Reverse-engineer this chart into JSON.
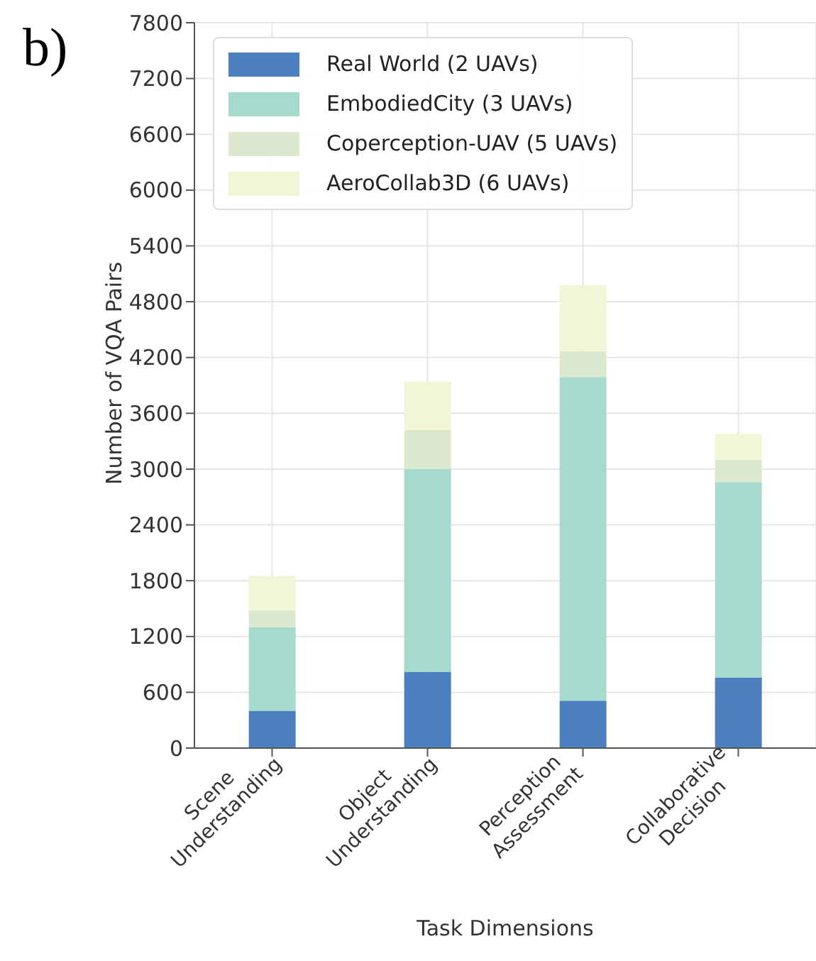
{
  "chart_data": {
    "type": "bar",
    "stacked": true,
    "categories": [
      "Scene Understanding",
      "Object Understanding",
      "Perception Assessment",
      "Collaborative Decision"
    ],
    "series": [
      {
        "name": "Real World (2 UAVs)",
        "color": "#4c7fbf",
        "values": [
          400,
          820,
          510,
          760
        ]
      },
      {
        "name": "EmbodiedCity (3 UAVs)",
        "color": "#a5dacd",
        "values": [
          900,
          2180,
          3480,
          2100
        ]
      },
      {
        "name": "Coperception-UAV (5 UAVs)",
        "color": "#dde9cf",
        "values": [
          180,
          420,
          280,
          240
        ]
      },
      {
        "name": "AeroCollab3D (6 UAVs)",
        "color": "#f3f6d6",
        "values": [
          370,
          520,
          710,
          280
        ]
      }
    ],
    "xlabel": "Task Dimensions",
    "ylabel": "Number of VQA Pairs",
    "ylim": [
      0,
      7800
    ],
    "yticks": [
      0,
      600,
      1200,
      1800,
      2400,
      3000,
      3600,
      4200,
      4800,
      5400,
      6000,
      6600,
      7200,
      7800
    ],
    "grid": true,
    "legend": "top left",
    "annotations": [
      "b)"
    ]
  }
}
